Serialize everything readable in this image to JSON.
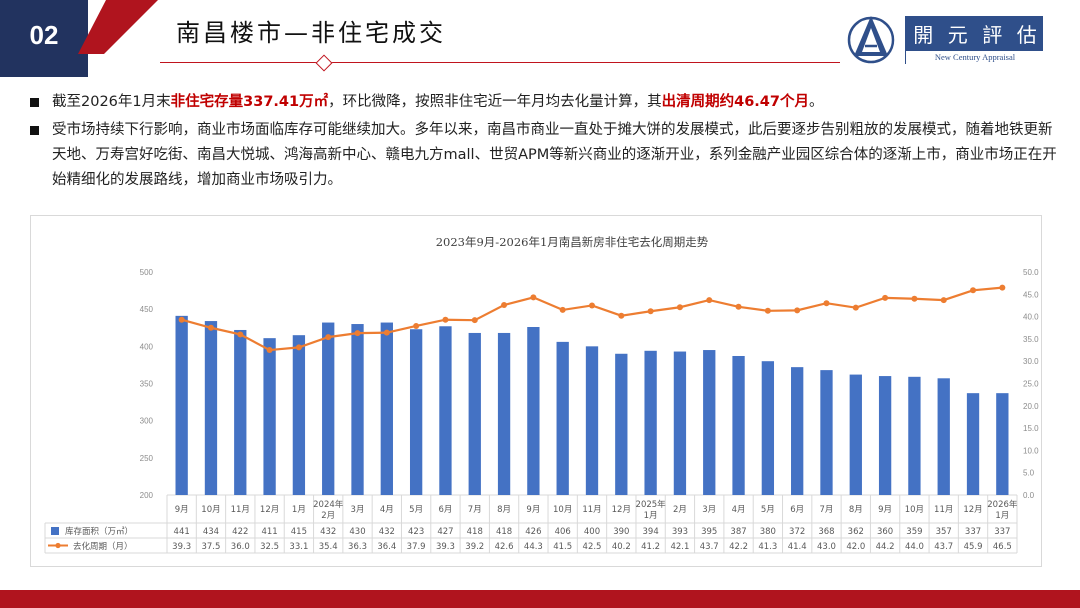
{
  "header": {
    "section_number": "02",
    "title": "南昌楼市—非住宅成交",
    "logo_cn": [
      "開",
      "元",
      "評",
      "估"
    ],
    "logo_en": "New Century Appraisal"
  },
  "bullets": [
    {
      "parts": [
        {
          "text": "截至2026年1月末",
          "hl": false
        },
        {
          "text": "非住宅存量337.41万㎡",
          "hl": true
        },
        {
          "text": "，环比微降，按照非住宅近一年月均去化量计算，其",
          "hl": false
        },
        {
          "text": "出清周期约46.47个月",
          "hl": true
        },
        {
          "text": "。",
          "hl": false
        }
      ]
    },
    {
      "parts": [
        {
          "text": "受市场持续下行影响，商业市场面临库存可能继续加大。多年以来，南昌市商业一直处于摊大饼的发展模式，此后要逐步告别粗放的发展模式，随着地铁更新天地、万寿宫好吃街、南昌大悦城、鸿海高新中心、赣电九方mall、世贸APM等新兴商业的逐渐开业，系列金融产业园区综合体的逐渐上市，商业市场正在开始精细化的发展路线，增加商业市场吸引力。",
          "hl": false
        }
      ]
    }
  ],
  "colors": {
    "bar": "#4472c4",
    "line": "#ed7d31",
    "accent_red": "#c00000",
    "navy": "#22335f"
  },
  "chart_data": {
    "type": "bar",
    "title": "2023年9月-2026年1月南昌新房非住宅去化周期走势",
    "categories": [
      "9月",
      "10月",
      "11月",
      "12月",
      "1月",
      "2024年2月",
      "3月",
      "4月",
      "5月",
      "6月",
      "7月",
      "8月",
      "9月",
      "10月",
      "11月",
      "12月",
      "2025年1月",
      "2月",
      "3月",
      "4月",
      "5月",
      "6月",
      "7月",
      "8月",
      "9月",
      "10月",
      "11月",
      "12月",
      "2026年1月"
    ],
    "series": [
      {
        "name": "库存面积（万㎡）",
        "kind": "bar",
        "axis": "left",
        "values": [
          441,
          434,
          422,
          411,
          415,
          432,
          430,
          432,
          423,
          427,
          418,
          418,
          426,
          406,
          400,
          390,
          394,
          393,
          395,
          387,
          380,
          372,
          368,
          362,
          360,
          359,
          357,
          337,
          337
        ]
      },
      {
        "name": "去化周期（月）",
        "kind": "line",
        "axis": "right",
        "values": [
          39.3,
          37.5,
          36.0,
          32.5,
          33.1,
          35.4,
          36.3,
          36.4,
          37.9,
          39.3,
          39.2,
          42.6,
          44.3,
          41.5,
          42.5,
          40.2,
          41.2,
          42.1,
          43.7,
          42.2,
          41.3,
          41.4,
          43.0,
          42.0,
          44.2,
          44.0,
          43.7,
          45.9,
          46.5
        ]
      }
    ],
    "y_left": {
      "min": 200,
      "max": 500,
      "ticks": [
        "200",
        "250",
        "300",
        "350",
        "400",
        "450",
        "500"
      ]
    },
    "y_right": {
      "min": 0,
      "max": 50,
      "ticks": [
        "0.0",
        "5.0",
        "10.0",
        "15.0",
        "20.0",
        "25.0",
        "30.0",
        "35.0",
        "40.0",
        "45.0",
        "50.0"
      ]
    },
    "legend": "data-table",
    "grid": false
  }
}
